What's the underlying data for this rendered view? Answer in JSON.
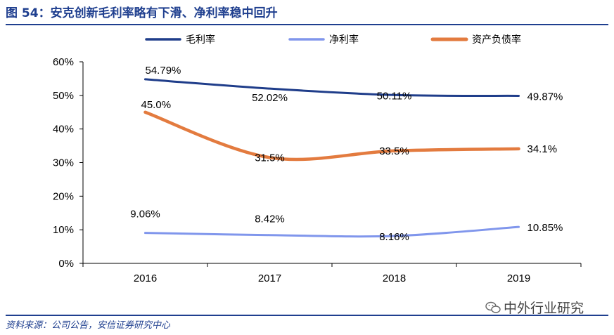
{
  "title": "图 54：安克创新毛利率略有下滑、净利率稳中回升",
  "source": "资料来源：公司公告，安信证券研究中心",
  "watermark": "中外行业研究",
  "colors": {
    "brand": "#1f3f8f",
    "gross": "#1f3d8a",
    "net": "#8096ec",
    "debt": "#e37b3f"
  },
  "chart_data": {
    "type": "line",
    "x": [
      "2016",
      "2017",
      "2018",
      "2019"
    ],
    "ylim": [
      0,
      60
    ],
    "yticks": [
      "0%",
      "10%",
      "20%",
      "30%",
      "40%",
      "50%",
      "60%"
    ],
    "legend_position": "top",
    "grid": false,
    "series": [
      {
        "name": "毛利率",
        "values": [
          54.79,
          52.02,
          50.11,
          49.87
        ],
        "labels": [
          "54.79%",
          "52.02%",
          "50.11%",
          "49.87%"
        ],
        "color": "#1f3d8a"
      },
      {
        "name": "净利率",
        "values": [
          9.06,
          8.42,
          8.16,
          10.85
        ],
        "labels": [
          "9.06%",
          "8.42%",
          "8.16%",
          "10.85%"
        ],
        "color": "#8096ec"
      },
      {
        "name": "资产负债率",
        "values": [
          45.0,
          31.5,
          33.5,
          34.1
        ],
        "labels": [
          "45.0%",
          "31.5%",
          "33.5%",
          "34.1%"
        ],
        "color": "#e37b3f"
      }
    ]
  }
}
